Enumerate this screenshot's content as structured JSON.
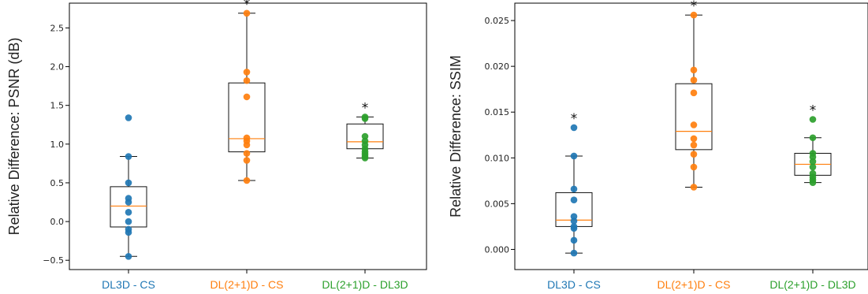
{
  "colors": {
    "blue": "#1f77b4",
    "orange": "#ff7f0e",
    "green": "#2ca02c",
    "box": "#111111",
    "median": "#ff7f0e"
  },
  "chart_data": [
    {
      "type": "box",
      "ylabel": "Relative Difference: PSNR (dB)",
      "ylim": [
        -0.62,
        2.82
      ],
      "yticks": [
        -0.5,
        0.0,
        0.5,
        1.0,
        1.5,
        2.0,
        2.5
      ],
      "ytick_labels": [
        "−0.5",
        "0.0",
        "0.5",
        "1.0",
        "1.5",
        "2.0",
        "2.5"
      ],
      "categories": [
        "DL3D - CS",
        "DL(2+1)D - CS",
        "DL(2+1)D - DL3D"
      ],
      "category_colors": [
        "#1f77b4",
        "#ff7f0e",
        "#2ca02c"
      ],
      "significance": [
        "",
        "*",
        "*"
      ],
      "boxes": [
        {
          "whislo": -0.45,
          "q1": -0.07,
          "med": 0.2,
          "q3": 0.45,
          "whishi": 0.84
        },
        {
          "whislo": 0.53,
          "q1": 0.9,
          "med": 1.07,
          "q3": 1.79,
          "whishi": 2.69
        },
        {
          "whislo": 0.82,
          "q1": 0.94,
          "med": 1.03,
          "q3": 1.26,
          "whishi": 1.35
        }
      ],
      "points": [
        [
          1.34,
          0.84,
          0.5,
          0.3,
          0.25,
          0.12,
          0.0,
          -0.1,
          -0.14,
          -0.45
        ],
        [
          2.69,
          1.93,
          1.82,
          1.61,
          1.08,
          1.04,
          0.99,
          0.88,
          0.79,
          0.53
        ],
        [
          1.35,
          1.33,
          1.1,
          1.04,
          0.99,
          0.94,
          0.9,
          0.87,
          0.84,
          0.82
        ]
      ]
    },
    {
      "type": "box",
      "ylabel": "Relative Difference: SSIM",
      "ylim": [
        -0.0022,
        0.0269
      ],
      "yticks": [
        0.0,
        0.005,
        0.01,
        0.015,
        0.02,
        0.025
      ],
      "ytick_labels": [
        "0.000",
        "0.005",
        "0.010",
        "0.015",
        "0.020",
        "0.025"
      ],
      "categories": [
        "DL3D - CS",
        "DL(2+1)D - CS",
        "DL(2+1)D - DL3D"
      ],
      "category_colors": [
        "#1f77b4",
        "#ff7f0e",
        "#2ca02c"
      ],
      "significance": [
        "*",
        "*",
        "*"
      ],
      "boxes": [
        {
          "whislo": -0.0004,
          "q1": 0.0025,
          "med": 0.0032,
          "q3": 0.0062,
          "whishi": 0.0102
        },
        {
          "whislo": 0.0068,
          "q1": 0.0109,
          "med": 0.0129,
          "q3": 0.0181,
          "whishi": 0.0256
        },
        {
          "whislo": 0.0073,
          "q1": 0.0081,
          "med": 0.0093,
          "q3": 0.0105,
          "whishi": 0.0122
        }
      ],
      "points": [
        [
          0.0133,
          0.0102,
          0.0066,
          0.0054,
          0.0036,
          0.0031,
          0.0025,
          0.0023,
          0.001,
          -0.0004
        ],
        [
          0.0256,
          0.0196,
          0.0185,
          0.0171,
          0.0136,
          0.0121,
          0.0114,
          0.0104,
          0.009,
          0.0068
        ],
        [
          0.0142,
          0.0122,
          0.0105,
          0.0101,
          0.0096,
          0.009,
          0.0083,
          0.0079,
          0.0076,
          0.0073
        ]
      ]
    }
  ]
}
